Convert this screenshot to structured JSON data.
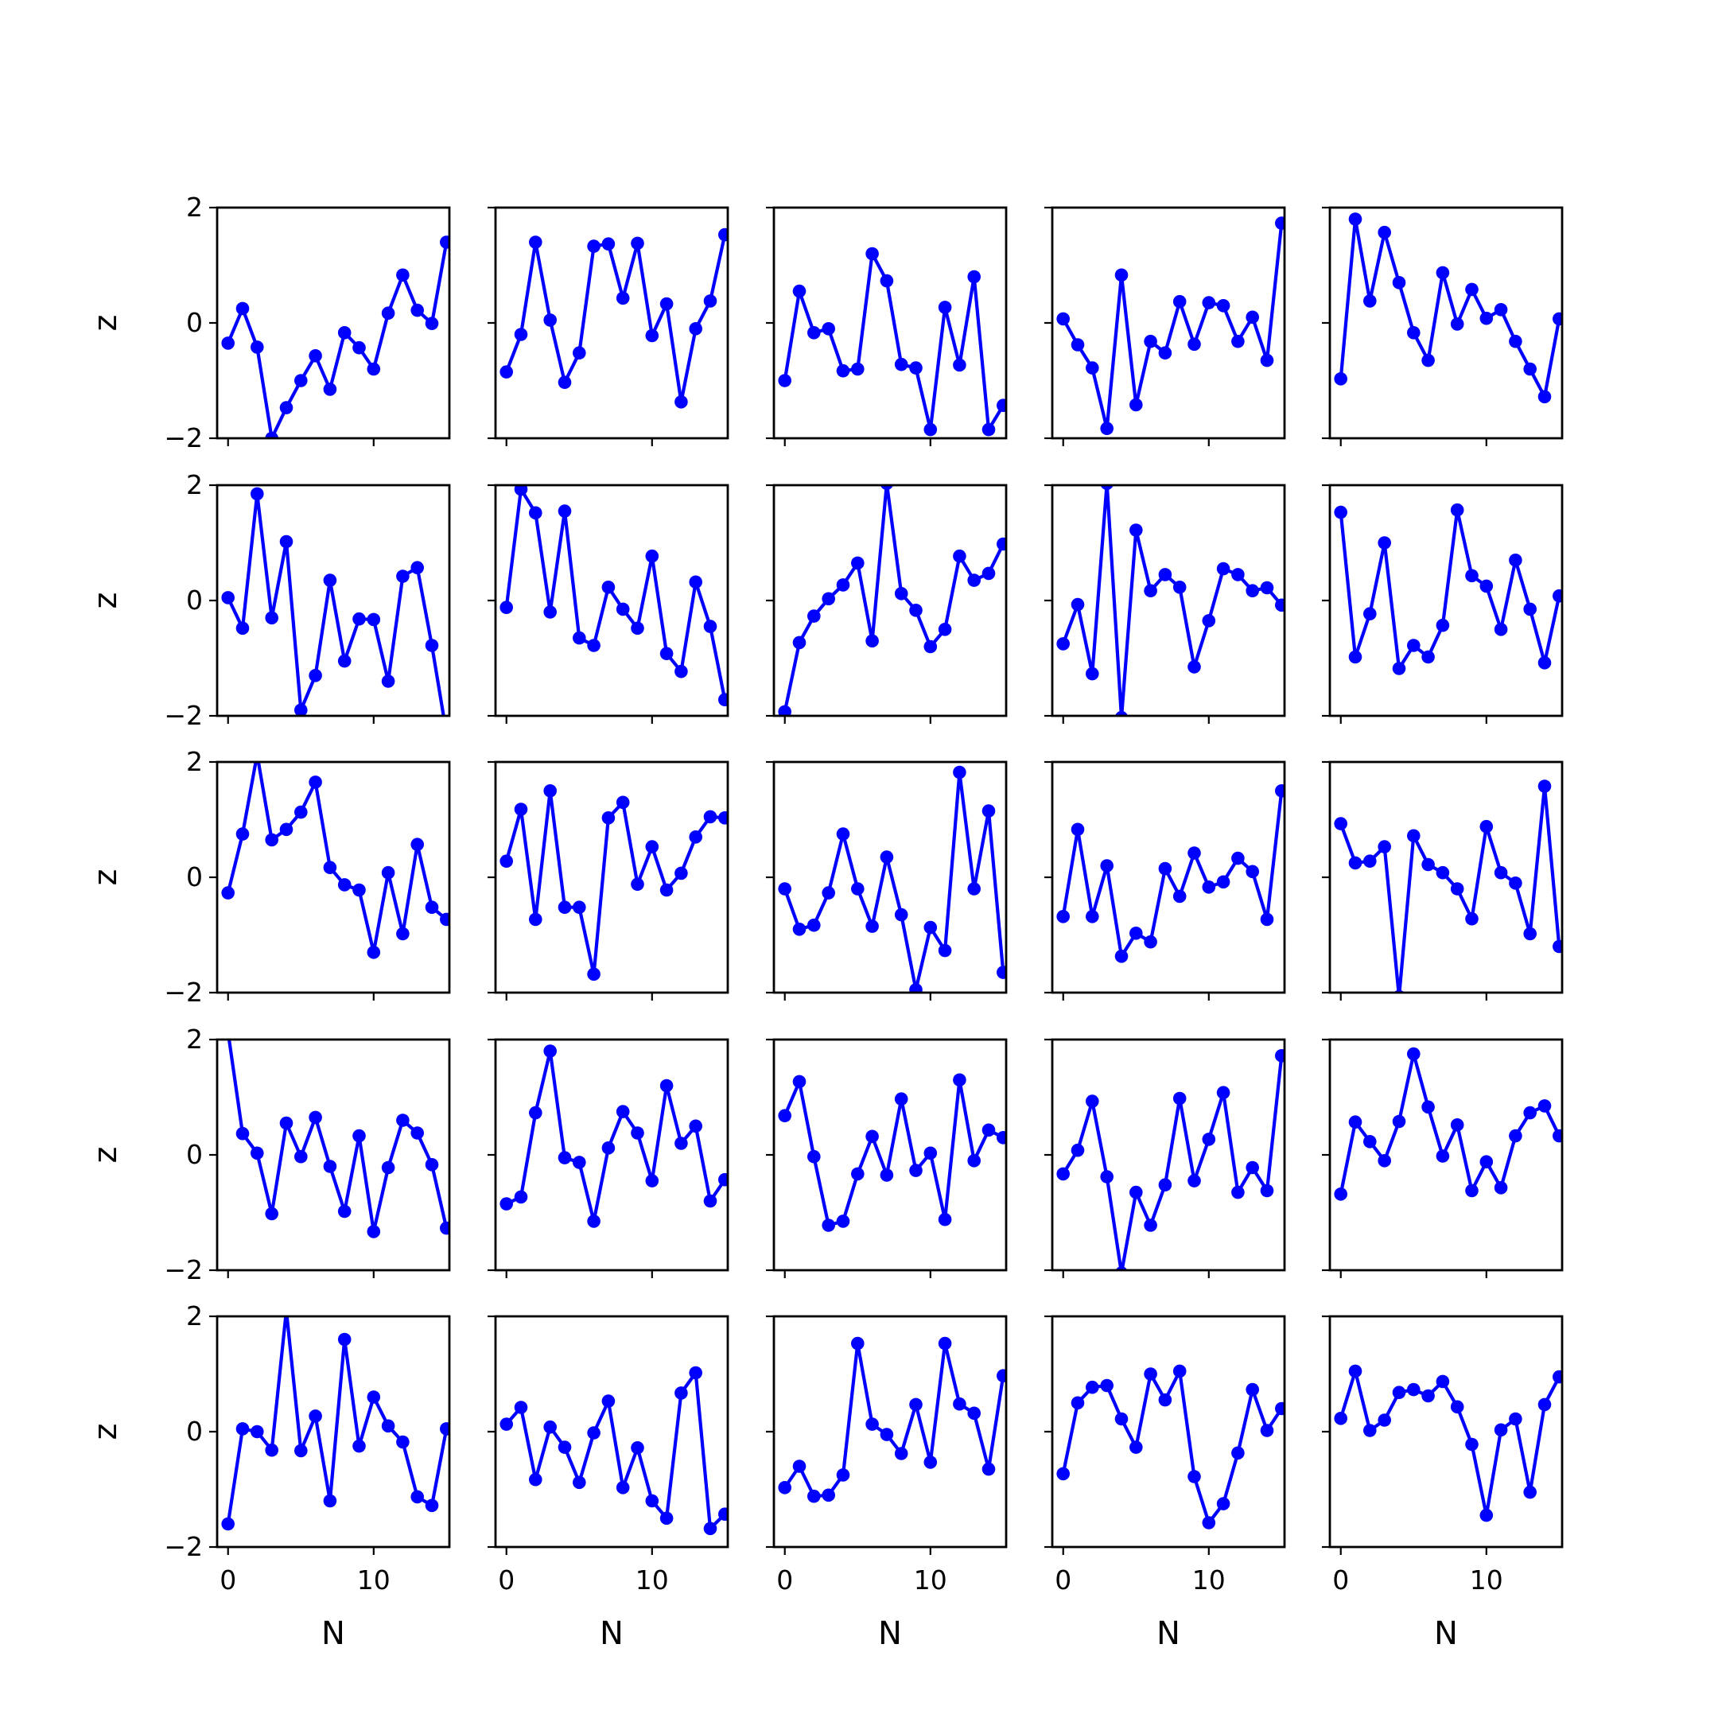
{
  "figure": {
    "rows": 5,
    "cols": 5,
    "line_color": "#0000ff",
    "axes_color": "#000000"
  },
  "shared_axes": {
    "xlabel": "N",
    "ylabel": "z",
    "xlim": [
      -0.75,
      15.2
    ],
    "ylim": [
      -2,
      2
    ],
    "xticks": [
      0,
      10
    ],
    "xtick_labels": [
      "0",
      "10"
    ],
    "yticks": [
      -2,
      0,
      2
    ],
    "ytick_labels": [
      "−2",
      "0",
      "2"
    ]
  },
  "chart_data": {
    "type": "line",
    "markers": true,
    "x": [
      0,
      1,
      2,
      3,
      4,
      5,
      6,
      7,
      8,
      9,
      10,
      11,
      12,
      13,
      14,
      15
    ],
    "panels": [
      {
        "row": 1,
        "col": 1,
        "values": [
          -0.35,
          0.25,
          -0.42,
          -2.0,
          -1.47,
          -1.0,
          -0.57,
          -1.15,
          -0.17,
          -0.43,
          -0.8,
          0.17,
          0.83,
          0.22,
          -0.01,
          1.4
        ]
      },
      {
        "row": 1,
        "col": 2,
        "values": [
          -0.85,
          -0.2,
          1.4,
          0.05,
          -1.03,
          -0.52,
          1.33,
          1.37,
          0.43,
          1.38,
          -0.22,
          0.33,
          -1.37,
          -0.1,
          0.38,
          1.53
        ]
      },
      {
        "row": 1,
        "col": 3,
        "values": [
          -1.0,
          0.55,
          -0.17,
          -0.1,
          -0.83,
          -0.8,
          1.2,
          0.73,
          -0.72,
          -0.78,
          -1.85,
          0.27,
          -0.73,
          0.8,
          -1.85,
          -1.43
        ]
      },
      {
        "row": 1,
        "col": 4,
        "values": [
          0.07,
          -0.38,
          -0.78,
          -1.83,
          0.83,
          -1.42,
          -0.32,
          -0.52,
          0.37,
          -0.37,
          0.35,
          0.3,
          -0.32,
          0.1,
          -0.65,
          1.73
        ]
      },
      {
        "row": 1,
        "col": 5,
        "values": [
          -0.97,
          1.8,
          0.38,
          1.57,
          0.7,
          -0.17,
          -0.65,
          0.87,
          -0.02,
          0.58,
          0.08,
          0.23,
          -0.32,
          -0.8,
          -1.28,
          0.07
        ]
      },
      {
        "row": 2,
        "col": 1,
        "values": [
          0.05,
          -0.48,
          1.85,
          -0.3,
          1.02,
          -1.9,
          -1.3,
          0.35,
          -1.05,
          -0.32,
          -0.33,
          -1.4,
          0.42,
          0.57,
          -0.78,
          -2.3
        ]
      },
      {
        "row": 2,
        "col": 2,
        "values": [
          -0.12,
          1.93,
          1.52,
          -0.2,
          1.55,
          -0.65,
          -0.78,
          0.23,
          -0.15,
          -0.48,
          0.77,
          -0.92,
          -1.23,
          0.32,
          -0.45,
          -1.72
        ]
      },
      {
        "row": 2,
        "col": 3,
        "values": [
          -1.93,
          -0.73,
          -0.27,
          0.03,
          0.27,
          0.65,
          -0.7,
          2.03,
          0.12,
          -0.17,
          -0.8,
          -0.5,
          0.77,
          0.35,
          0.47,
          0.98
        ]
      },
      {
        "row": 2,
        "col": 4,
        "values": [
          -0.75,
          -0.07,
          -1.27,
          2.03,
          -2.03,
          1.22,
          0.17,
          0.45,
          0.23,
          -1.15,
          -0.35,
          0.55,
          0.45,
          0.17,
          0.22,
          -0.08
        ]
      },
      {
        "row": 2,
        "col": 5,
        "values": [
          1.53,
          -0.98,
          -0.23,
          1.0,
          -1.18,
          -0.78,
          -0.98,
          -0.43,
          1.57,
          0.43,
          0.25,
          -0.5,
          0.7,
          -0.15,
          -1.08,
          0.08
        ]
      },
      {
        "row": 3,
        "col": 1,
        "values": [
          -0.27,
          0.75,
          2.13,
          0.65,
          0.83,
          1.13,
          1.65,
          0.17,
          -0.13,
          -0.22,
          -1.3,
          0.08,
          -0.98,
          0.57,
          -0.52,
          -0.73
        ]
      },
      {
        "row": 3,
        "col": 2,
        "values": [
          0.28,
          1.18,
          -0.73,
          1.5,
          -0.52,
          -0.52,
          -1.68,
          1.03,
          1.3,
          -0.12,
          0.53,
          -0.22,
          0.07,
          0.7,
          1.05,
          1.03
        ]
      },
      {
        "row": 3,
        "col": 3,
        "values": [
          -0.2,
          -0.9,
          -0.83,
          -0.27,
          0.75,
          -0.2,
          -0.85,
          0.35,
          -0.65,
          -1.95,
          -0.87,
          -1.27,
          1.82,
          -0.2,
          1.15,
          -1.65
        ]
      },
      {
        "row": 3,
        "col": 4,
        "values": [
          -0.68,
          0.83,
          -0.68,
          0.2,
          -1.37,
          -0.97,
          -1.12,
          0.15,
          -0.33,
          0.42,
          -0.17,
          -0.08,
          0.33,
          0.1,
          -0.73,
          1.5
        ]
      },
      {
        "row": 3,
        "col": 5,
        "values": [
          0.93,
          0.25,
          0.28,
          0.53,
          -2.07,
          0.72,
          0.22,
          0.08,
          -0.2,
          -0.72,
          0.88,
          0.08,
          -0.1,
          -0.98,
          1.58,
          -1.2
        ]
      },
      {
        "row": 4,
        "col": 1,
        "values": [
          2.13,
          0.37,
          0.03,
          -1.02,
          0.55,
          -0.03,
          0.65,
          -0.2,
          -0.98,
          0.33,
          -1.33,
          -0.22,
          0.6,
          0.38,
          -0.17,
          -1.27
        ]
      },
      {
        "row": 4,
        "col": 2,
        "values": [
          -0.85,
          -0.73,
          0.73,
          1.8,
          -0.05,
          -0.13,
          -1.15,
          0.12,
          0.75,
          0.38,
          -0.45,
          1.2,
          0.2,
          0.5,
          -0.8,
          -0.43
        ]
      },
      {
        "row": 4,
        "col": 3,
        "values": [
          0.68,
          1.27,
          -0.03,
          -1.22,
          -1.15,
          -0.33,
          0.32,
          -0.35,
          0.97,
          -0.27,
          0.03,
          -1.12,
          1.3,
          -0.1,
          0.43,
          0.3
        ]
      },
      {
        "row": 4,
        "col": 4,
        "values": [
          -0.33,
          0.08,
          0.93,
          -0.38,
          -2.05,
          -0.65,
          -1.22,
          -0.52,
          0.98,
          -0.45,
          0.27,
          1.08,
          -0.65,
          -0.22,
          -0.62,
          1.72
        ]
      },
      {
        "row": 4,
        "col": 5,
        "values": [
          -0.68,
          0.57,
          0.23,
          -0.1,
          0.58,
          1.75,
          0.83,
          -0.02,
          0.52,
          -0.62,
          -0.12,
          -0.57,
          0.33,
          0.73,
          0.85,
          0.33
        ]
      },
      {
        "row": 5,
        "col": 1,
        "values": [
          -1.6,
          0.05,
          0.0,
          -0.32,
          2.1,
          -0.33,
          0.27,
          -1.2,
          1.6,
          -0.25,
          0.6,
          0.1,
          -0.18,
          -1.13,
          -1.28,
          0.05
        ]
      },
      {
        "row": 5,
        "col": 2,
        "values": [
          0.13,
          0.42,
          -0.83,
          0.08,
          -0.27,
          -0.88,
          -0.02,
          0.53,
          -0.97,
          -0.28,
          -1.2,
          -1.5,
          0.67,
          1.02,
          -1.68,
          -1.43
        ]
      },
      {
        "row": 5,
        "col": 3,
        "values": [
          -0.97,
          -0.6,
          -1.12,
          -1.1,
          -0.75,
          1.53,
          0.13,
          -0.05,
          -0.38,
          0.47,
          -0.53,
          1.53,
          0.48,
          0.32,
          -0.65,
          0.97
        ]
      },
      {
        "row": 5,
        "col": 4,
        "values": [
          -0.73,
          0.5,
          0.77,
          0.8,
          0.22,
          -0.27,
          1.0,
          0.55,
          1.05,
          -0.78,
          -1.58,
          -1.25,
          -0.37,
          0.73,
          0.02,
          0.4
        ]
      },
      {
        "row": 5,
        "col": 5,
        "values": [
          0.23,
          1.05,
          0.02,
          0.2,
          0.68,
          0.73,
          0.62,
          0.87,
          0.43,
          -0.22,
          -1.45,
          0.03,
          0.22,
          -1.05,
          0.47,
          0.95
        ]
      }
    ]
  }
}
